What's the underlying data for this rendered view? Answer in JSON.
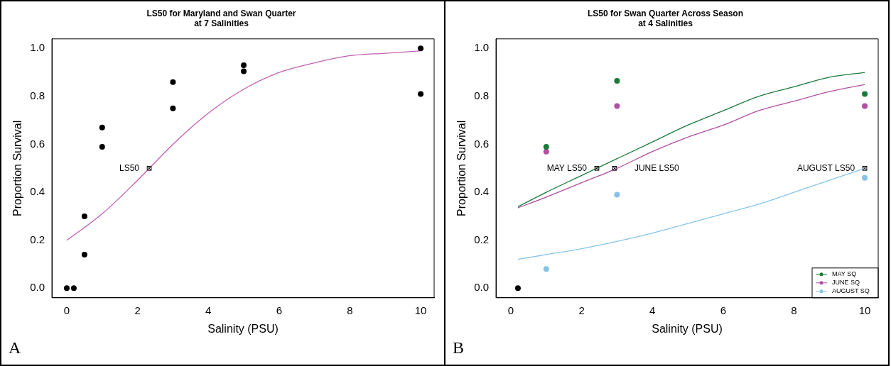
{
  "chart_data": [
    {
      "type": "scatter",
      "title": "LS50 for Maryland and Swan Quarter\nat 7 Salinities",
      "xlabel": "Salinity (PSU)",
      "ylabel": "Proportion Survival",
      "xlim": [
        -0.42,
        10.38
      ],
      "ylim": [
        -0.04,
        1.04
      ],
      "xticks": [
        0,
        2,
        4,
        6,
        8,
        10
      ],
      "yticks": [
        {
          "value": 0,
          "label": "0.0"
        },
        {
          "value": 0.2,
          "label": "0.2"
        },
        {
          "value": 0.4,
          "label": "0.4"
        },
        {
          "value": 0.6,
          "label": "0.6"
        },
        {
          "value": 0.8,
          "label": "0.8"
        },
        {
          "value": 1,
          "label": "1.0"
        }
      ],
      "marker": "circle",
      "series": [
        {
          "color": "#000000",
          "x": [
            0,
            0.2,
            0.5,
            0.5,
            1,
            1,
            3,
            3,
            5,
            5,
            10,
            10
          ],
          "values": [
            0,
            0,
            0.3,
            0.14,
            0.67,
            0.59,
            0.86,
            0.75,
            0.93,
            0.905,
            1.0,
            0.81
          ]
        },
        {
          "type": "line",
          "marker": "none",
          "color": "#c060b0",
          "x": [
            0,
            1,
            2,
            3,
            4,
            5,
            6,
            7,
            8,
            9,
            10
          ],
          "values": [
            0.2,
            0.31,
            0.45,
            0.6,
            0.73,
            0.83,
            0.9,
            0.94,
            0.97,
            0.98,
            0.99
          ]
        },
        {
          "marker": "square",
          "color": "#000000",
          "x": [
            2.33
          ],
          "values": [
            0.5
          ]
        }
      ],
      "annotations": [
        {
          "text": "LS50",
          "x": 2.33,
          "y": 0.5
        },
        "A"
      ]
    },
    {
      "type": "scatter",
      "title": "LS50 for Swan Quarter Across Season\nat 4 Salinities",
      "xlabel": "Salinity (PSU)",
      "ylabel": "Proportion Survival",
      "xlim": [
        -0.42,
        10.38
      ],
      "ylim": [
        -0.04,
        1.04
      ],
      "xticks": [
        0,
        2,
        4,
        6,
        8,
        10
      ],
      "yticks": [
        {
          "value": 0,
          "label": "0.0"
        },
        {
          "value": 0.2,
          "label": "0.2"
        },
        {
          "value": 0.4,
          "label": "0.4"
        },
        {
          "value": 0.6,
          "label": "0.6"
        },
        {
          "value": 0.8,
          "label": "0.8"
        },
        {
          "value": 1,
          "label": "1.0"
        }
      ],
      "marker": "circle",
      "legend": "bottom right",
      "series": [
        {
          "name": "MAY SQ",
          "color": "#1a7a3a",
          "x": [
            1,
            3,
            10
          ],
          "values": [
            0.59,
            0.865,
            0.81
          ]
        },
        {
          "name": "JUNE SQ",
          "color": "#b04fa4",
          "x": [
            1,
            3,
            10
          ],
          "values": [
            0.57,
            0.76,
            0.76
          ]
        },
        {
          "name": "AUGUST SQ",
          "color": "#87c3e8",
          "x": [
            1,
            3,
            10
          ],
          "values": [
            0.08,
            0.39,
            0.46
          ]
        },
        {
          "color": "#000000",
          "x": [
            0.2
          ],
          "values": [
            0
          ]
        },
        {
          "type": "line",
          "marker": "none",
          "color": "#1a7a3a",
          "x": [
            0.2,
            1,
            2,
            3,
            4,
            5,
            6,
            7,
            8,
            9,
            10
          ],
          "values": [
            0.34,
            0.4,
            0.47,
            0.54,
            0.61,
            0.68,
            0.74,
            0.8,
            0.84,
            0.88,
            0.9
          ]
        },
        {
          "type": "line",
          "marker": "none",
          "color": "#b04fa4",
          "x": [
            0.2,
            1,
            2,
            3,
            4,
            5,
            6,
            7,
            8,
            9,
            10
          ],
          "values": [
            0.335,
            0.38,
            0.44,
            0.5,
            0.57,
            0.63,
            0.68,
            0.74,
            0.78,
            0.82,
            0.85
          ]
        },
        {
          "type": "line",
          "marker": "none",
          "color": "#87c3e8",
          "x": [
            0.2,
            1,
            2,
            3,
            4,
            5,
            6,
            7,
            8,
            9,
            10
          ],
          "values": [
            0.12,
            0.14,
            0.165,
            0.195,
            0.23,
            0.27,
            0.31,
            0.35,
            0.4,
            0.45,
            0.5
          ]
        },
        {
          "marker": "square",
          "color": "#000000",
          "x": [
            2.43,
            2.93,
            10
          ],
          "values": [
            0.5,
            0.5,
            0.5
          ]
        }
      ],
      "annotations": [
        {
          "text": "MAY LS50",
          "x": 2.43,
          "y": 0.5
        },
        {
          "text": "JUNE LS50",
          "x": 2.93,
          "y": 0.5
        },
        {
          "text": "AUGUST LS50",
          "x": 10,
          "y": 0.5
        },
        "B"
      ]
    }
  ]
}
